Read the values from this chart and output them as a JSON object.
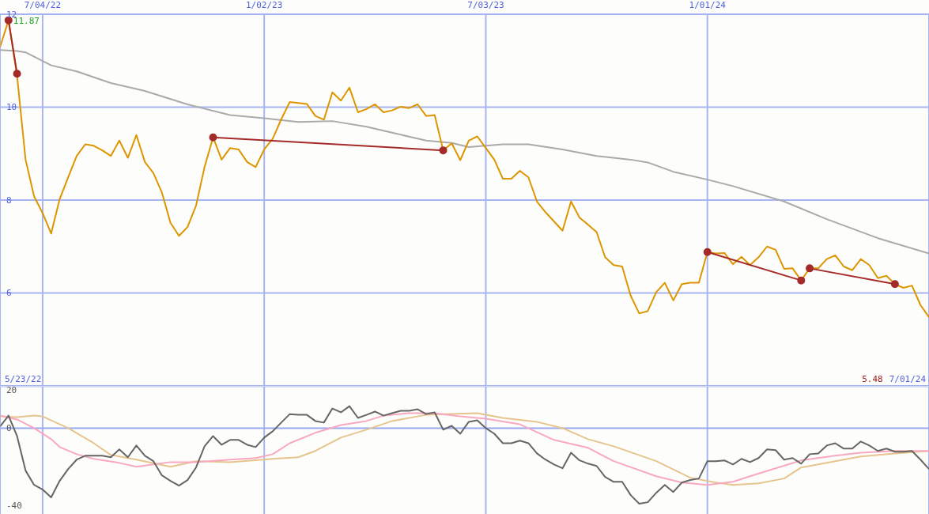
{
  "chart_data": [
    {
      "type": "line",
      "x": [
        "2022-05-30",
        "2022-06-06",
        "2022-06-13",
        "2022-06-20",
        "2022-06-27",
        "2022-07-04",
        "2022-07-11",
        "2022-07-18",
        "2022-07-25",
        "2022-08-01",
        "2022-08-08",
        "2022-08-15",
        "2022-08-22",
        "2022-08-29",
        "2022-09-05",
        "2022-09-12",
        "2022-09-19",
        "2022-09-26",
        "2022-10-03",
        "2022-10-10",
        "2022-10-17",
        "2022-10-24",
        "2022-10-31",
        "2022-11-07",
        "2022-11-14",
        "2022-11-21",
        "2022-11-28",
        "2022-12-05",
        "2022-12-12",
        "2022-12-19",
        "2022-12-26",
        "2023-01-02",
        "2023-01-09",
        "2023-01-16",
        "2023-01-23",
        "2023-01-30",
        "2023-02-06",
        "2023-02-13",
        "2023-02-20",
        "2023-02-27",
        "2023-03-06",
        "2023-03-13",
        "2023-03-20",
        "2023-03-27",
        "2023-04-03",
        "2023-04-10",
        "2023-04-17",
        "2023-04-24",
        "2023-05-01",
        "2023-05-08",
        "2023-05-15",
        "2023-05-22",
        "2023-05-29",
        "2023-06-05",
        "2023-06-12",
        "2023-06-19",
        "2023-06-26",
        "2023-07-03",
        "2023-07-10",
        "2023-07-17",
        "2023-07-24",
        "2023-07-31",
        "2023-08-07",
        "2023-08-14",
        "2023-08-21",
        "2023-08-28",
        "2023-09-04",
        "2023-09-11",
        "2023-09-18",
        "2023-09-25",
        "2023-10-02",
        "2023-10-09",
        "2023-10-16",
        "2023-10-23",
        "2023-10-30",
        "2023-11-06",
        "2023-11-13",
        "2023-11-20",
        "2023-11-27",
        "2023-12-04",
        "2023-12-11",
        "2023-12-18",
        "2023-12-25",
        "2024-01-01",
        "2024-01-08",
        "2024-01-15",
        "2024-01-22",
        "2024-01-29",
        "2024-02-05",
        "2024-02-12",
        "2024-02-19",
        "2024-02-26",
        "2024-03-04",
        "2024-03-11",
        "2024-03-18",
        "2024-03-25",
        "2024-04-01",
        "2024-04-08",
        "2024-04-15",
        "2024-04-22",
        "2024-04-29",
        "2024-05-06",
        "2024-05-13",
        "2024-05-20",
        "2024-05-27",
        "2024-06-03",
        "2024-06-10",
        "2024-06-17",
        "2024-06-24",
        "2024-07-01"
      ],
      "series": [
        {
          "color": "#aaaaaa",
          "x": [
            "2022-05-30",
            "2022-06-13",
            "2022-06-20",
            "2022-07-11",
            "2022-08-01",
            "2022-08-29",
            "2022-09-26",
            "2022-10-31",
            "2022-12-05",
            "2023-01-02",
            "2023-01-30",
            "2023-02-27",
            "2023-03-27",
            "2023-04-17",
            "2023-05-15",
            "2023-06-05",
            "2023-06-19",
            "2023-07-17",
            "2023-08-07",
            "2023-09-04",
            "2023-10-02",
            "2023-10-30",
            "2023-11-13",
            "2023-12-04",
            "2024-01-01",
            "2024-01-22",
            "2024-03-04",
            "2024-04-08",
            "2024-05-20",
            "2024-07-01"
          ],
          "values": [
            11.23,
            11.21,
            11.18,
            10.9,
            10.77,
            10.52,
            10.35,
            10.06,
            9.83,
            9.76,
            9.68,
            9.7,
            9.58,
            9.45,
            9.28,
            9.23,
            9.14,
            9.2,
            9.2,
            9.09,
            8.95,
            8.87,
            8.81,
            8.61,
            8.44,
            8.3,
            7.97,
            7.59,
            7.18,
            6.85
          ]
        },
        {
          "color": "#dd9500",
          "values": [
            11.29,
            11.87,
            10.68,
            8.87,
            8.08,
            7.72,
            7.28,
            8.02,
            8.49,
            8.95,
            9.2,
            9.17,
            9.07,
            8.95,
            9.28,
            8.91,
            9.4,
            8.82,
            8.58,
            8.16,
            7.51,
            7.23,
            7.42,
            7.88,
            8.71,
            9.35,
            8.87,
            9.12,
            9.09,
            8.82,
            8.71,
            9.09,
            9.32,
            9.74,
            10.11,
            10.09,
            10.07,
            9.81,
            9.73,
            10.32,
            10.14,
            10.42,
            9.89,
            9.96,
            10.06,
            9.89,
            9.93,
            10.01,
            9.98,
            10.06,
            9.81,
            9.83,
            9.07,
            9.22,
            8.86,
            9.28,
            9.37,
            9.12,
            8.87,
            8.46,
            8.46,
            8.63,
            8.49,
            7.97,
            7.74,
            7.54,
            7.34,
            7.97,
            7.62,
            7.47,
            7.31,
            6.77,
            6.6,
            6.57,
            5.94,
            5.56,
            5.61,
            6.02,
            6.22,
            5.84,
            6.19,
            6.22,
            6.22,
            6.88,
            6.85,
            6.86,
            6.62,
            6.78,
            6.6,
            6.77,
            7.0,
            6.93,
            6.52,
            6.53,
            6.27,
            6.53,
            6.53,
            6.73,
            6.81,
            6.57,
            6.49,
            6.73,
            6.6,
            6.32,
            6.37,
            6.19,
            6.11,
            6.16,
            5.74,
            5.48
          ]
        },
        {
          "color": "#a52a2a",
          "marker": "circle",
          "x": [
            "2022-06-06",
            "2022-06-13"
          ],
          "values": [
            11.87,
            10.72
          ]
        },
        {
          "color": "#a52a2a",
          "marker": "circle",
          "x": [
            "2022-11-21",
            "2023-05-29"
          ],
          "values": [
            9.35,
            9.07
          ]
        },
        {
          "color": "#a52a2a",
          "marker": "circle",
          "x": [
            "2024-01-01",
            "2024-03-18"
          ],
          "values": [
            6.88,
            6.27
          ]
        },
        {
          "color": "#a52a2a",
          "marker": "circle",
          "x": [
            "2024-03-25",
            "2024-06-03"
          ],
          "values": [
            6.53,
            6.19
          ]
        }
      ],
      "xlim": [
        "2022-05-30",
        "2024-07-01"
      ],
      "xticks": [
        {
          "value": "2022-07-04",
          "label": "7/04/22"
        },
        {
          "value": "2023-01-02",
          "label": "1/02/23"
        },
        {
          "value": "2023-07-03",
          "label": "7/03/23"
        },
        {
          "value": "2024-01-01",
          "label": "1/01/24"
        }
      ],
      "ylim": [
        4,
        12
      ],
      "yticks": [
        6,
        8,
        10,
        12
      ],
      "grid": true,
      "marker": "none",
      "line_style": "solid",
      "annotations": [
        {
          "text": "11.87",
          "x": "2022-06-06",
          "y": 11.87
        },
        "5/23/22",
        "5.48",
        "7/01/24"
      ]
    },
    {
      "type": "line",
      "x": [
        "2022-05-30",
        "2022-06-06",
        "2022-06-13",
        "2022-06-20",
        "2022-06-27",
        "2022-07-04",
        "2022-07-11",
        "2022-07-18",
        "2022-07-25",
        "2022-08-01",
        "2022-08-08",
        "2022-08-15",
        "2022-08-22",
        "2022-08-29",
        "2022-09-05",
        "2022-09-12",
        "2022-09-19",
        "2022-09-26",
        "2022-10-03",
        "2022-10-10",
        "2022-10-17",
        "2022-10-24",
        "2022-10-31",
        "2022-11-07",
        "2022-11-14",
        "2022-11-21",
        "2022-11-28",
        "2022-12-05",
        "2022-12-12",
        "2022-12-19",
        "2022-12-26",
        "2023-01-02",
        "2023-01-09",
        "2023-01-16",
        "2023-01-23",
        "2023-01-30",
        "2023-02-06",
        "2023-02-13",
        "2023-02-20",
        "2023-02-27",
        "2023-03-06",
        "2023-03-13",
        "2023-03-20",
        "2023-03-27",
        "2023-04-03",
        "2023-04-10",
        "2023-04-17",
        "2023-04-24",
        "2023-05-01",
        "2023-05-08",
        "2023-05-15",
        "2023-05-22",
        "2023-05-29",
        "2023-06-05",
        "2023-06-12",
        "2023-06-19",
        "2023-06-26",
        "2023-07-03",
        "2023-07-10",
        "2023-07-17",
        "2023-07-24",
        "2023-07-31",
        "2023-08-07",
        "2023-08-14",
        "2023-08-21",
        "2023-08-28",
        "2023-09-04",
        "2023-09-11",
        "2023-09-18",
        "2023-09-25",
        "2023-10-02",
        "2023-10-09",
        "2023-10-16",
        "2023-10-23",
        "2023-10-30",
        "2023-11-06",
        "2023-11-13",
        "2023-11-20",
        "2023-11-27",
        "2023-12-04",
        "2023-12-11",
        "2023-12-18",
        "2023-12-25",
        "2024-01-01",
        "2024-01-08",
        "2024-01-15",
        "2024-01-22",
        "2024-01-29",
        "2024-02-05",
        "2024-02-12",
        "2024-02-19",
        "2024-02-26",
        "2024-03-04",
        "2024-03-11",
        "2024-03-18",
        "2024-03-25",
        "2024-04-01",
        "2024-04-08",
        "2024-04-15",
        "2024-04-22",
        "2024-04-29",
        "2024-05-06",
        "2024-05-13",
        "2024-05-20",
        "2024-05-27",
        "2024-06-03",
        "2024-06-10",
        "2024-06-17",
        "2024-06-24",
        "2024-07-01"
      ],
      "series": [
        {
          "color": "#e6c48e",
          "x": [
            "2022-05-30",
            "2022-06-13",
            "2022-06-27",
            "2022-07-04",
            "2022-07-25",
            "2022-08-15",
            "2022-08-29",
            "2022-09-19",
            "2022-10-17",
            "2022-11-07",
            "2022-12-05",
            "2023-01-09",
            "2023-01-30",
            "2023-02-13",
            "2023-03-06",
            "2023-03-27",
            "2023-04-17",
            "2023-05-15",
            "2023-05-29",
            "2023-06-26",
            "2023-07-17",
            "2023-08-14",
            "2023-09-04",
            "2023-09-25",
            "2023-10-16",
            "2023-11-20",
            "2023-12-18",
            "2024-01-08",
            "2024-01-22",
            "2024-02-12",
            "2024-03-04",
            "2024-03-18",
            "2024-04-15",
            "2024-05-06",
            "2024-06-03",
            "2024-07-01"
          ],
          "values": [
            6.1,
            5.7,
            6.5,
            6.1,
            0.0,
            -7.8,
            -13.9,
            -16.3,
            -20.0,
            -17.1,
            -17.6,
            -15.9,
            -15.1,
            -11.8,
            -4.9,
            -0.8,
            3.7,
            6.9,
            7.3,
            7.8,
            5.3,
            3.3,
            0.0,
            -5.7,
            -9.4,
            -17.1,
            -25.7,
            -28.2,
            -29.4,
            -28.6,
            -26.1,
            -20.4,
            -17.1,
            -14.7,
            -13.1,
            -11.8
          ]
        },
        {
          "color": "#f8a8c0",
          "x": [
            "2022-05-30",
            "2022-06-13",
            "2022-06-27",
            "2022-07-11",
            "2022-07-18",
            "2022-08-01",
            "2022-08-15",
            "2022-09-05",
            "2022-09-19",
            "2022-10-03",
            "2022-10-17",
            "2022-11-07",
            "2022-12-05",
            "2022-12-26",
            "2023-01-09",
            "2023-01-23",
            "2023-02-13",
            "2023-03-06",
            "2023-03-27",
            "2023-04-10",
            "2023-05-01",
            "2023-05-22",
            "2023-06-12",
            "2023-07-03",
            "2023-07-31",
            "2023-08-28",
            "2023-09-25",
            "2023-10-16",
            "2023-11-20",
            "2023-12-11",
            "2024-01-01",
            "2024-01-22",
            "2024-02-05",
            "2024-02-26",
            "2024-03-18",
            "2024-04-15",
            "2024-05-06",
            "2024-06-03",
            "2024-07-01"
          ],
          "values": [
            6.5,
            4.5,
            0.0,
            -5.7,
            -9.8,
            -13.5,
            -15.9,
            -18.0,
            -20.0,
            -18.8,
            -17.6,
            -17.6,
            -16.3,
            -15.5,
            -13.5,
            -7.8,
            -2.4,
            1.6,
            3.7,
            6.5,
            7.8,
            7.8,
            6.1,
            4.9,
            2.0,
            -6.1,
            -10.2,
            -17.1,
            -24.9,
            -28.2,
            -29.4,
            -27.8,
            -24.9,
            -20.8,
            -16.7,
            -14.3,
            -12.7,
            -11.8,
            -11.8
          ]
        },
        {
          "color": "#666666",
          "values": [
            0.8,
            6.5,
            -4.1,
            -22.0,
            -29.4,
            -31.8,
            -35.9,
            -27.3,
            -21.2,
            -16.3,
            -14.3,
            -14.3,
            -14.3,
            -15.1,
            -11.0,
            -15.1,
            -9.0,
            -14.3,
            -17.1,
            -24.5,
            -27.3,
            -29.8,
            -26.9,
            -20.4,
            -9.4,
            -4.1,
            -8.6,
            -6.1,
            -6.1,
            -8.6,
            -9.8,
            -4.9,
            -1.6,
            2.9,
            7.3,
            6.9,
            6.9,
            3.7,
            2.9,
            10.2,
            8.2,
            11.4,
            5.3,
            6.9,
            8.6,
            6.5,
            7.8,
            9.0,
            9.0,
            9.8,
            7.3,
            8.2,
            -0.8,
            1.2,
            -2.9,
            3.3,
            4.1,
            0.0,
            -2.9,
            -7.8,
            -7.8,
            -6.5,
            -7.8,
            -13.1,
            -16.3,
            -18.8,
            -20.8,
            -12.7,
            -16.7,
            -18.4,
            -19.6,
            -25.3,
            -27.8,
            -27.8,
            -34.7,
            -39.2,
            -38.4,
            -33.5,
            -29.4,
            -33.1,
            -28.2,
            -26.9,
            -26.1,
            -17.1,
            -17.1,
            -16.7,
            -18.8,
            -15.9,
            -17.6,
            -15.5,
            -11.0,
            -11.4,
            -16.3,
            -15.5,
            -18.4,
            -13.5,
            -13.1,
            -9.0,
            -7.8,
            -10.6,
            -10.6,
            -6.9,
            -9.0,
            -11.8,
            -10.6,
            -12.2,
            -12.2,
            -11.8,
            -16.3,
            -21.2
          ]
        }
      ],
      "xlim": [
        "2022-05-30",
        "2024-07-01"
      ],
      "xticks": [
        {
          "value": "2022-07-04",
          "label": null
        },
        {
          "value": "2023-01-02",
          "label": null
        },
        {
          "value": "2023-07-03",
          "label": null
        },
        {
          "value": "2024-01-01",
          "label": null
        }
      ],
      "ylim": [
        -44.5,
        21.5
      ],
      "yticks": [
        -40,
        0,
        20
      ],
      "tick_labels": "y",
      "grid": "x",
      "marker": "none",
      "line_style": "solid",
      "ref_lines": [
        {
          "axis": "y",
          "value": 0,
          "color": "#99a8f0"
        }
      ]
    }
  ]
}
